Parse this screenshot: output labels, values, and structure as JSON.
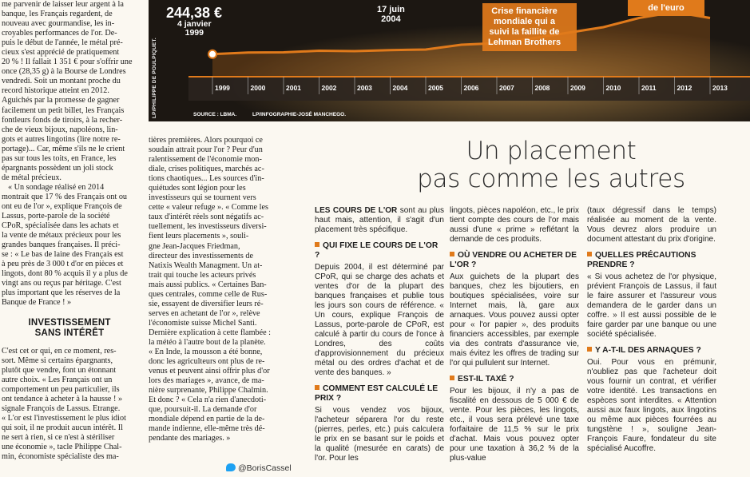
{
  "col1": [
    "me parvenir de laisser leur argent à la",
    "banque, les Français regardent, de",
    "nouveau avec gourmandise, les in-",
    "croyables performances de l'or. De-",
    "puis le début de l'année, le métal pré-",
    "cieux s'est apprécié de pratiquement",
    "20 % ! Il fallait 1 351 € pour s'offrir une",
    "once (28,35 g) à la Bourse de Londres",
    "vendredi. Soit un montant proche du",
    "record historique atteint en 2012.",
    "Aguichés par la promesse de gagner",
    "facilement un petit billet, les Français",
    "fontleurs fonds de tiroirs, à la recher-",
    "che de vieux bijoux, napoléons, lin-",
    "gots et autres lingotins (lire notre re-",
    "portage)... Car, même s'ils ne le crient",
    "pas sur tous les toits, en France, les",
    "épargnants possèdent un joli stock",
    "de métal précieux.",
    "« Un sondage réalisé en 2014",
    "montrait que 17 % des Français ont ou",
    "ont eu de l'or », explique François de",
    "Lassus, porte-parole de la société",
    "CPoR, spécialisée dans les achats et",
    "la vente de métaux précieux pour les",
    "grandes banques françaises. Il préci-",
    "se : « Le bas de laine des Français est",
    "à peu près de 3 000 t d'or en pièces et",
    "lingots, dont 80 % acquis il y a plus de",
    "vingt ans ou reçus par héritage. C'est",
    "plus important que les réserves de la",
    "Banque de France ! »"
  ],
  "col1_sub": [
    "INVESTISSEMENT",
    "SANS INTÉRÊT"
  ],
  "col1b": [
    "C'est cet or qui, en ce moment, res-",
    "sort. Même si certains épargnants,",
    "plutôt que vendre, font un étonnant",
    "autre choix. « Les Français ont un",
    "comportement un peu particulier, ils",
    "ont tendance à acheter à la hausse ! »",
    "signale François de Lassus. Etrange.",
    "« L'or est l'investissement le plus idiot",
    "qui soit, il ne produit aucun intérêt. Il",
    "ne sert à rien, si ce n'est à stériliser",
    "une économie », tacle Philippe Chal-",
    "min, économiste spécialiste des ma-"
  ],
  "col2": [
    "tières premières. Alors pourquoi ce",
    "soudain attrait pour l'or ? Peur d'un",
    "ralentissement de l'économie mon-",
    "diale, crises politiques, marchés ac-",
    "tions chaotiques... Les sources d'in-",
    "quiétudes sont légion pour les",
    "investisseurs qui se tournent vers",
    "cette « valeur refuge ». « Comme les",
    "taux d'intérêt réels sont négatifs ac-",
    "tuellement, les investisseurs diversi-",
    "fient leurs placements », souli-",
    "gne Jean-Jacques Friedman,",
    "directeur des investissements de",
    "Natixis Wealth Managment. Un at-",
    "trait qui touche les acteurs privés",
    "mais aussi publics. « Certaines Ban-",
    "ques centrales, comme celle de Rus-",
    "sie, essayent de diversifier leurs ré-",
    "serves en achetant de l'or », relève",
    "l'économiste suisse Michel Santi.",
    "Dernière explication à cette flambée :",
    "la météo à l'autre bout de la planète.",
    "« En Inde, la mousson a été bonne,",
    "donc les agriculteurs ont plus de re-",
    "venus et peuvent ainsi offrir plus d'or",
    "lors des mariages », avance, de ma-",
    "nière surprenante, Philippe Chalmin.",
    "Et donc ? « Cela n'a rien d'anecdoti-",
    "que, poursuit-il. La demande d'or",
    "mondiale dépend en partie de la de-",
    "mande indienne, elle-même très dé-",
    "pendante des mariages. »"
  ],
  "signoff": "@BorisCassel",
  "headline": [
    "Un placement",
    "pas comme les autres"
  ],
  "box1": {
    "lead": "LES COURS DE L'OR",
    "lead_rest": " sont au plus haut mais, attention, il s'agit d'un placement très spécifique.",
    "q1": "QUI FIXE LE COURS DE L'OR ?",
    "t1": "Depuis 2004, il est déterminé par CPoR, qui se charge des achats et ventes d'or de la plupart des banques françaises et publie tous les jours son cours de référence. « Un cours, explique François de Lassus, porte-parole de CPoR, est calculé à partir du cours de l'once à Londres, des coûts d'approvisionnement du précieux métal ou des ordres d'achat et de vente des banques. »",
    "q2": "COMMENT EST CALCULÉ LE PRIX ?",
    "t2": "Si vous vendez vos bijoux, l'acheteur séparera l'or du reste (pierres, perles, etc.) puis calculera le prix en se basant sur le poids et la qualité (mesurée en carats) de l'or. Pour les"
  },
  "box2": {
    "t0": "lingots, pièces napoléon, etc., le prix tient compte des cours de l'or mais aussi d'une « prime » reflétant la demande de ces produits.",
    "q1": "OÙ VENDRE OU ACHETER DE L'OR ?",
    "t1": "Aux guichets de la plupart des banques, chez les bijoutiers, en boutiques spécialisées, voire sur Internet mais, là, gare aux arnaques. Vous pouvez aussi opter pour « l'or papier », des produits financiers accessibles, par exemple via des contrats d'assurance vie, mais évitez les offres de trading sur l'or qui pullulent sur Internet.",
    "q2": "EST-IL TAXÉ ?",
    "t2": "Pour les bijoux, il n'y a pas de fiscalité en dessous de 5 000 € de vente. Pour les pièces, les lingots, etc., il vous sera prélevé une taxe forfaitaire de 11,5 % sur le prix d'achat. Mais vous pouvez opter pour une taxation à 36,2 % de la plus-value"
  },
  "box3": {
    "t0": "(taux dégressif dans le temps) réalisée au moment de la vente. Vous devrez alors produire un document attestant du prix d'origine.",
    "q1": "QUELLES PRÉCAUTIONS PRENDRE ?",
    "t1": "« Si vous achetez de l'or physique, prévient François de Lassus, il faut le faire assurer et l'assureur vous demandera de le garder dans un coffre. » Il est aussi possible de le faire garder par une banque ou une société spécialisée.",
    "q2": "Y A-T-IL DES ARNAQUES ?",
    "t2": "Oui. Pour vous en prémunir, n'oubliez pas que l'acheteur doit vous fournir un contrat, et vérifier votre identité. Les transactions en espèces sont interdites. « Attention aussi aux faux lingots, aux lingotins ou même aux pièces fourrées au tungstène ! », souligne Jean-François Faure, fondateur du site spécialisé Aucoffre."
  },
  "chart": {
    "start_value": "244,38 €",
    "start_date_1": "4 janvier",
    "start_date_2": "1999",
    "mid_date_1": "17 juin",
    "mid_date_2": "2004",
    "crisis": [
      "Crise financière",
      "mondiale qui a",
      "suivi la faillite de",
      "Lehman Brothers"
    ],
    "euro": "de l'euro",
    "years": [
      "1999",
      "2000",
      "2001",
      "2002",
      "2003",
      "2004",
      "2005",
      "2006",
      "2007",
      "2008",
      "2009",
      "2010",
      "2011",
      "2012",
      "2013"
    ],
    "source": "SOURCE : LBMA.",
    "infographie": "LP/INFOGRAPHIE-JOSÉ MANCHEGO.",
    "photo_credit": "LP/PHILIPPE DE POULPIQUET.",
    "accent": "#e07a1b"
  },
  "chart_data": {
    "type": "line",
    "x": [
      "1999",
      "2000",
      "2001",
      "2002",
      "2003",
      "2004",
      "2005",
      "2006",
      "2007",
      "2008",
      "2009",
      "2010",
      "2011",
      "2012",
      "2013"
    ],
    "series": [
      {
        "values": [
          244,
          285,
          290,
          330,
          320,
          345,
          360,
          480,
          520,
          640,
          780,
          920,
          1150,
          1300,
          1150
        ]
      }
    ]
  }
}
